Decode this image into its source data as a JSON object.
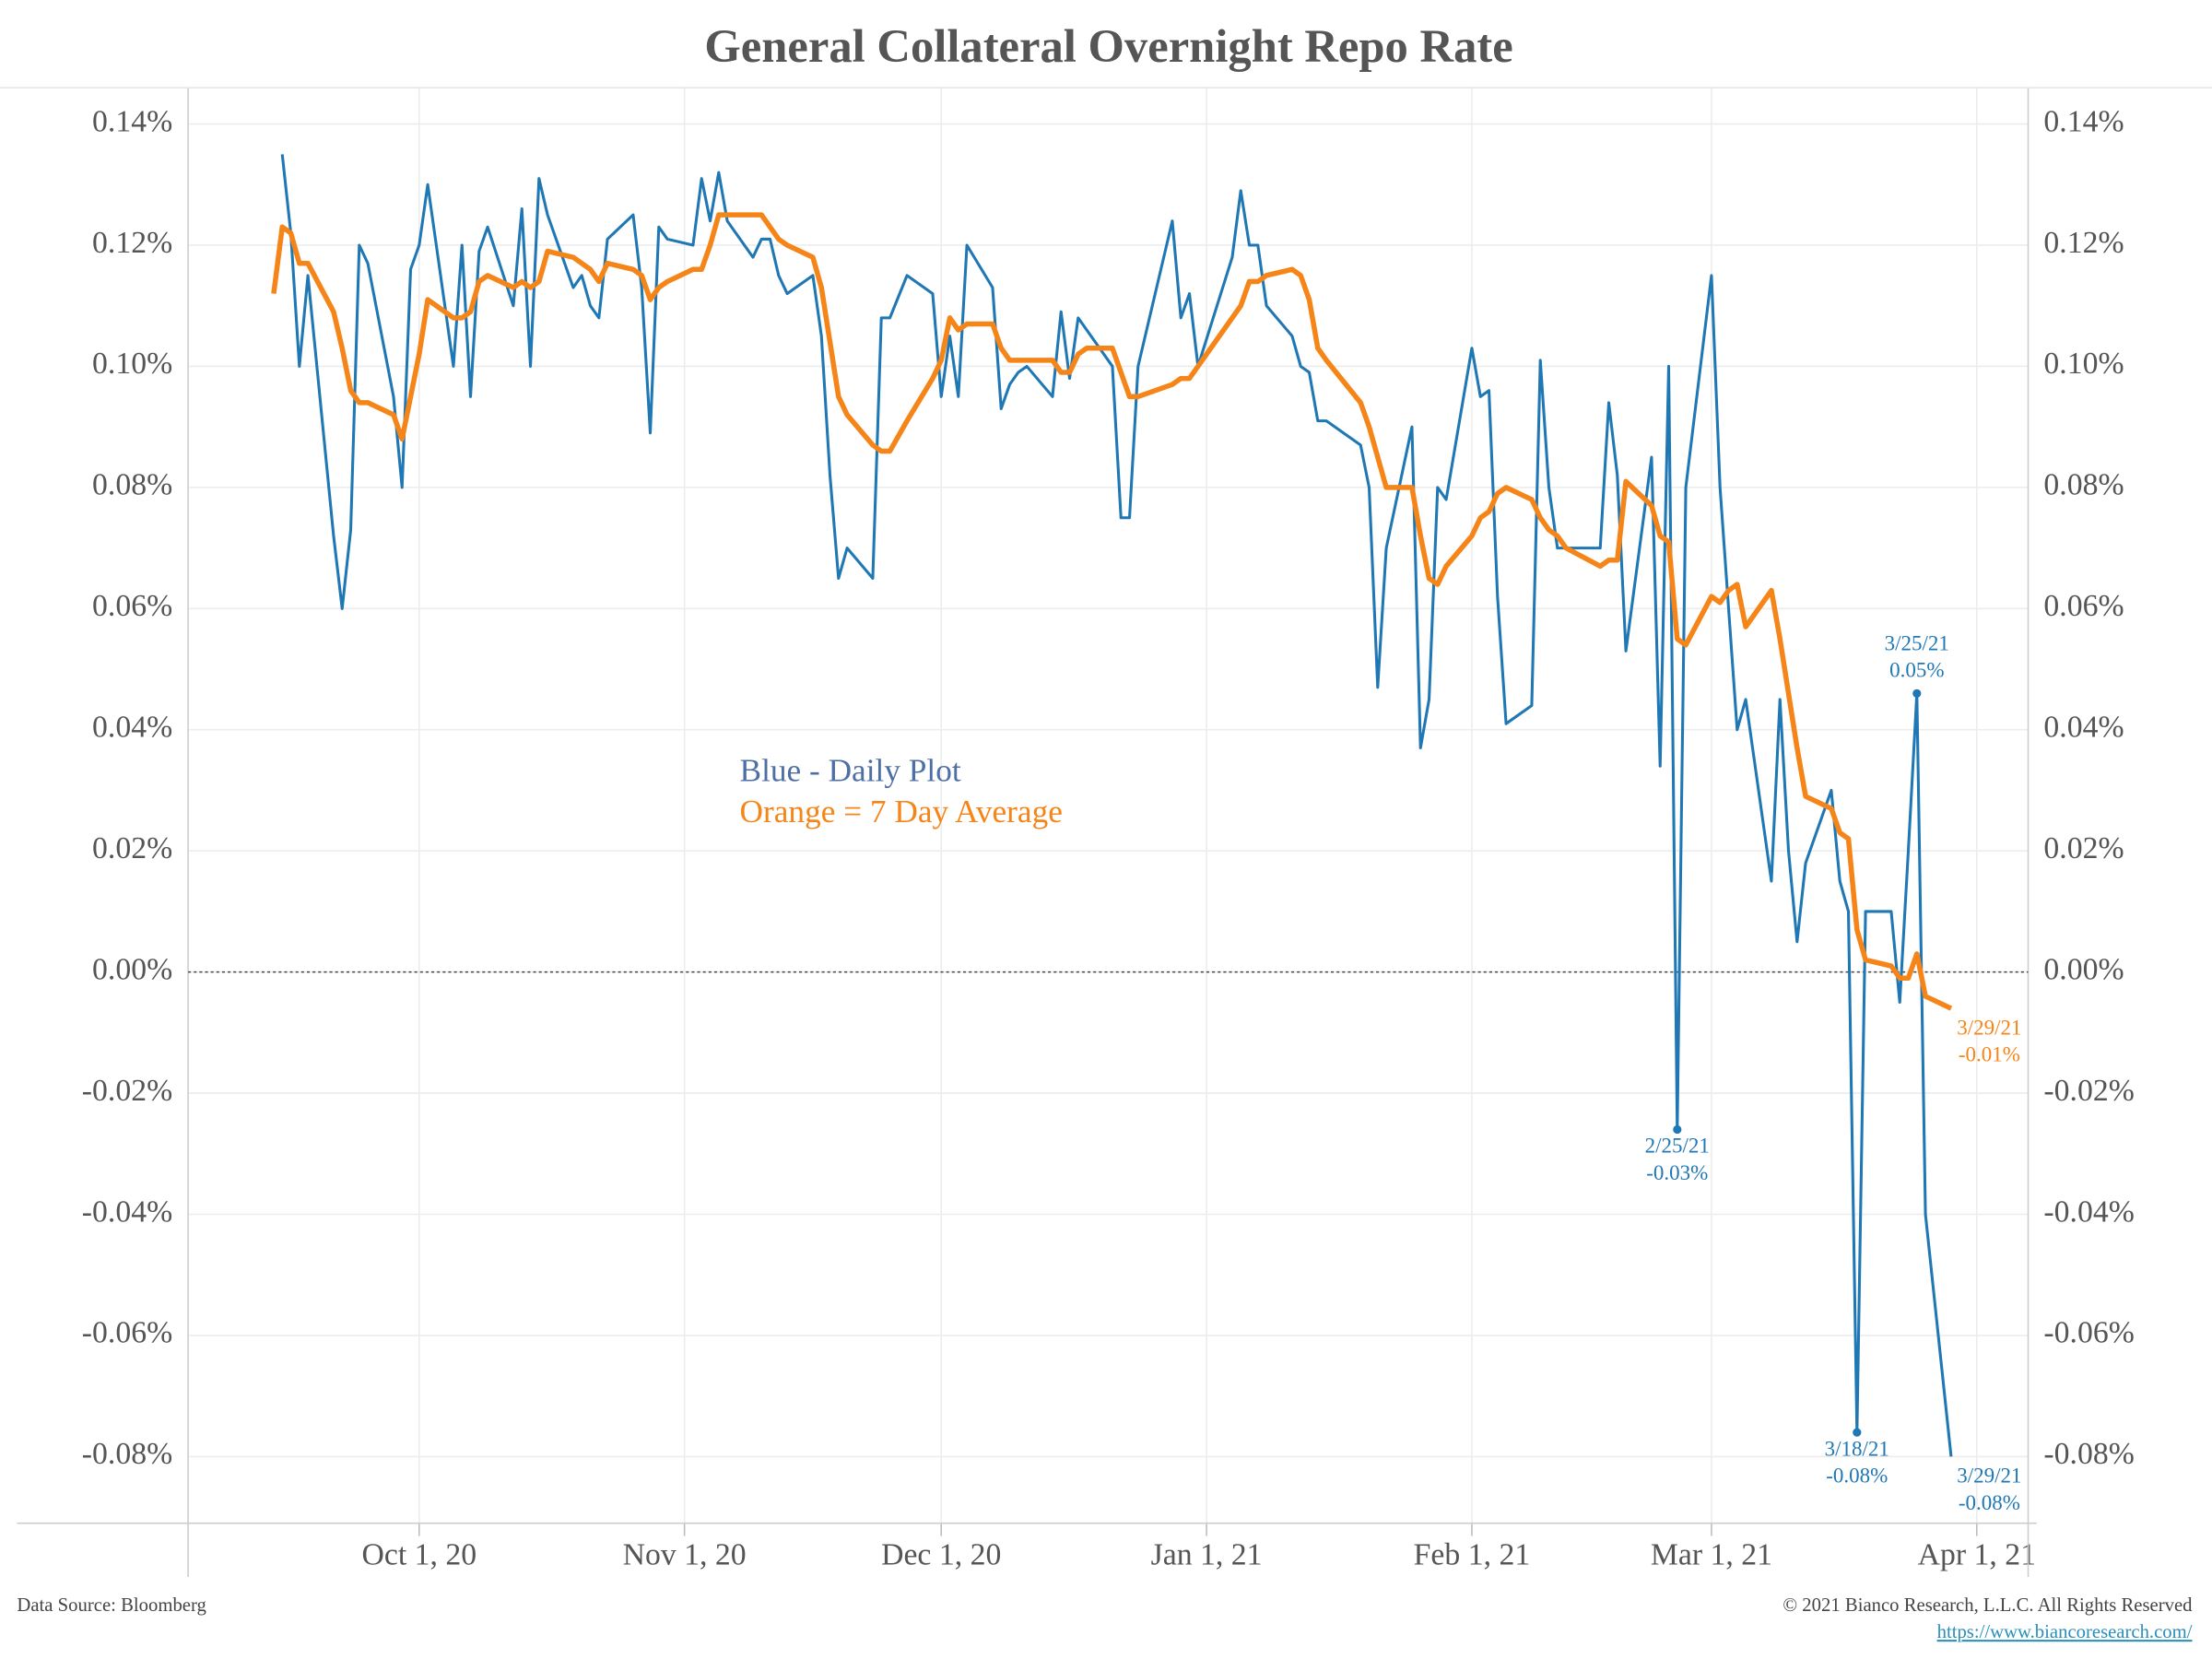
{
  "chart_data": {
    "type": "line",
    "title": "General Collateral Overnight Repo Rate",
    "x": [
      "2020-09-14",
      "2020-09-15",
      "2020-09-16",
      "2020-09-17",
      "2020-09-18",
      "2020-09-21",
      "2020-09-22",
      "2020-09-23",
      "2020-09-24",
      "2020-09-25",
      "2020-09-28",
      "2020-09-29",
      "2020-09-30",
      "2020-10-01",
      "2020-10-02",
      "2020-10-05",
      "2020-10-06",
      "2020-10-07",
      "2020-10-08",
      "2020-10-09",
      "2020-10-12",
      "2020-10-13",
      "2020-10-14",
      "2020-10-15",
      "2020-10-16",
      "2020-10-19",
      "2020-10-20",
      "2020-10-21",
      "2020-10-22",
      "2020-10-23",
      "2020-10-26",
      "2020-10-27",
      "2020-10-28",
      "2020-10-29",
      "2020-10-30",
      "2020-11-02",
      "2020-11-03",
      "2020-11-04",
      "2020-11-05",
      "2020-11-06",
      "2020-11-09",
      "2020-11-10",
      "2020-11-11",
      "2020-11-12",
      "2020-11-13",
      "2020-11-16",
      "2020-11-17",
      "2020-11-18",
      "2020-11-19",
      "2020-11-20",
      "2020-11-23",
      "2020-11-24",
      "2020-11-25",
      "2020-11-27",
      "2020-11-30",
      "2020-12-01",
      "2020-12-02",
      "2020-12-03",
      "2020-12-04",
      "2020-12-07",
      "2020-12-08",
      "2020-12-09",
      "2020-12-10",
      "2020-12-11",
      "2020-12-14",
      "2020-12-15",
      "2020-12-16",
      "2020-12-17",
      "2020-12-18",
      "2020-12-21",
      "2020-12-22",
      "2020-12-23",
      "2020-12-24",
      "2020-12-28",
      "2020-12-29",
      "2020-12-30",
      "2020-12-31",
      "2021-01-04",
      "2021-01-05",
      "2021-01-06",
      "2021-01-07",
      "2021-01-08",
      "2021-01-11",
      "2021-01-12",
      "2021-01-13",
      "2021-01-14",
      "2021-01-15",
      "2021-01-19",
      "2021-01-20",
      "2021-01-21",
      "2021-01-22",
      "2021-01-25",
      "2021-01-26",
      "2021-01-27",
      "2021-01-28",
      "2021-01-29",
      "2021-02-01",
      "2021-02-02",
      "2021-02-03",
      "2021-02-04",
      "2021-02-05",
      "2021-02-08",
      "2021-02-09",
      "2021-02-10",
      "2021-02-11",
      "2021-02-12",
      "2021-02-16",
      "2021-02-17",
      "2021-02-18",
      "2021-02-19",
      "2021-02-22",
      "2021-02-23",
      "2021-02-24",
      "2021-02-25",
      "2021-02-26",
      "2021-03-01",
      "2021-03-02",
      "2021-03-03",
      "2021-03-04",
      "2021-03-05",
      "2021-03-08",
      "2021-03-09",
      "2021-03-10",
      "2021-03-11",
      "2021-03-12",
      "2021-03-15",
      "2021-03-16",
      "2021-03-17",
      "2021-03-18",
      "2021-03-19",
      "2021-03-22",
      "2021-03-23",
      "2021-03-24",
      "2021-03-25",
      "2021-03-26",
      "2021-03-29"
    ],
    "series": [
      {
        "name": "Blue - Daily Plot",
        "color": "#1f77b4",
        "values": [
          null,
          0.135,
          0.122,
          0.1,
          0.115,
          0.072,
          0.06,
          0.073,
          0.12,
          0.117,
          0.095,
          0.08,
          0.116,
          0.12,
          0.13,
          0.1,
          0.12,
          0.095,
          0.119,
          0.123,
          0.11,
          0.126,
          0.1,
          0.131,
          0.125,
          0.113,
          0.115,
          0.11,
          0.108,
          0.121,
          0.125,
          0.113,
          0.089,
          0.123,
          0.121,
          0.12,
          0.131,
          0.124,
          0.132,
          0.124,
          0.118,
          0.121,
          0.121,
          0.115,
          0.112,
          0.115,
          0.105,
          0.082,
          0.065,
          0.07,
          0.065,
          0.108,
          0.108,
          0.115,
          0.112,
          0.095,
          0.105,
          0.095,
          0.12,
          0.113,
          0.093,
          0.097,
          0.099,
          0.1,
          0.095,
          0.109,
          0.098,
          0.108,
          0.106,
          0.1,
          0.075,
          0.075,
          0.1,
          0.124,
          0.108,
          0.112,
          0.1,
          0.118,
          0.129,
          0.12,
          0.12,
          0.11,
          0.105,
          0.1,
          0.099,
          0.091,
          0.091,
          0.087,
          0.08,
          0.047,
          0.07,
          0.09,
          0.037,
          0.045,
          0.08,
          0.078,
          0.103,
          0.095,
          0.096,
          0.062,
          0.041,
          0.044,
          0.101,
          0.08,
          0.07,
          0.07,
          0.07,
          0.094,
          0.082,
          0.053,
          0.085,
          0.034,
          0.1,
          -0.026,
          0.08,
          0.115,
          0.08,
          0.06,
          0.04,
          0.045,
          0.015,
          0.045,
          0.02,
          0.005,
          0.018,
          0.03,
          0.015,
          0.01,
          -0.076,
          0.01,
          0.01,
          -0.005,
          0.02,
          0.046,
          -0.04,
          -0.08
        ]
      },
      {
        "name": "Orange = 7 Day Average",
        "color": "#f58518",
        "values": [
          0.112,
          0.123,
          0.122,
          0.117,
          0.117,
          0.109,
          0.103,
          0.096,
          0.094,
          0.094,
          0.092,
          0.088,
          0.095,
          0.102,
          0.111,
          0.108,
          0.108,
          0.109,
          0.114,
          0.115,
          0.113,
          0.114,
          0.113,
          0.114,
          0.119,
          0.118,
          0.117,
          0.116,
          0.114,
          0.117,
          0.116,
          0.115,
          0.111,
          0.113,
          0.114,
          0.116,
          0.116,
          0.12,
          0.125,
          0.125,
          0.125,
          0.125,
          0.123,
          0.121,
          0.12,
          0.118,
          0.113,
          0.104,
          0.095,
          0.092,
          0.087,
          0.086,
          0.086,
          0.091,
          0.098,
          0.101,
          0.108,
          0.106,
          0.107,
          0.107,
          0.103,
          0.101,
          0.101,
          0.101,
          0.101,
          0.099,
          0.099,
          0.102,
          0.103,
          0.103,
          0.099,
          0.095,
          0.095,
          0.097,
          0.098,
          0.098,
          0.1,
          0.108,
          0.11,
          0.114,
          0.114,
          0.115,
          0.116,
          0.115,
          0.111,
          0.103,
          0.101,
          0.094,
          0.09,
          0.085,
          0.08,
          0.08,
          0.072,
          0.065,
          0.064,
          0.067,
          0.072,
          0.075,
          0.076,
          0.079,
          0.08,
          0.078,
          0.075,
          0.073,
          0.072,
          0.07,
          0.067,
          0.068,
          0.068,
          0.081,
          0.077,
          0.072,
          0.071,
          0.055,
          0.054,
          0.062,
          0.061,
          0.063,
          0.064,
          0.057,
          0.063,
          0.055,
          0.046,
          0.037,
          0.029,
          0.027,
          0.023,
          0.022,
          0.007,
          0.002,
          0.001,
          -0.001,
          -0.001,
          0.003,
          -0.004,
          -0.006
        ]
      }
    ],
    "xlim": [
      "2020-09-04",
      "2021-04-07"
    ],
    "xticks": [
      {
        "value": "2020-10-01",
        "label": "Oct 1, 20"
      },
      {
        "value": "2020-11-01",
        "label": "Nov 1, 20"
      },
      {
        "value": "2020-12-01",
        "label": "Dec 1, 20"
      },
      {
        "value": "2021-01-01",
        "label": "Jan 1, 21"
      },
      {
        "value": "2021-02-01",
        "label": "Feb 1, 21"
      },
      {
        "value": "2021-03-01",
        "label": "Mar 1, 21"
      },
      {
        "value": "2021-04-01",
        "label": "Apr 1, 21"
      }
    ],
    "ylim": [
      -0.091,
      0.146
    ],
    "yticks": [
      {
        "value": 0.14,
        "label": "0.14%"
      },
      {
        "value": 0.12,
        "label": "0.12%"
      },
      {
        "value": 0.1,
        "label": "0.10%"
      },
      {
        "value": 0.08,
        "label": "0.08%"
      },
      {
        "value": 0.06,
        "label": "0.06%"
      },
      {
        "value": 0.04,
        "label": "0.04%"
      },
      {
        "value": 0.02,
        "label": "0.02%"
      },
      {
        "value": 0,
        "label": "0.00%"
      },
      {
        "value": -0.02,
        "label": "-0.02%"
      },
      {
        "value": -0.04,
        "label": "-0.04%"
      },
      {
        "value": -0.06,
        "label": "-0.06%"
      },
      {
        "value": -0.08,
        "label": "-0.08%"
      }
    ],
    "y2lim": [
      -0.091,
      0.146
    ],
    "y2ticks": [
      {
        "value": 0.14,
        "label": "0.14%"
      },
      {
        "value": 0.12,
        "label": "0.12%"
      },
      {
        "value": 0.1,
        "label": "0.10%"
      },
      {
        "value": 0.08,
        "label": "0.08%"
      },
      {
        "value": 0.06,
        "label": "0.06%"
      },
      {
        "value": 0.04,
        "label": "0.04%"
      },
      {
        "value": 0.02,
        "label": "0.02%"
      },
      {
        "value": 0,
        "label": "0.00%"
      },
      {
        "value": -0.02,
        "label": "-0.02%"
      },
      {
        "value": -0.04,
        "label": "-0.04%"
      },
      {
        "value": -0.06,
        "label": "-0.06%"
      },
      {
        "value": -0.08,
        "label": "-0.08%"
      }
    ],
    "grid": true,
    "reference_line": 0,
    "annotations": [
      {
        "series": 0,
        "x": "2021-02-25",
        "lines": [
          "2/25/21",
          "-0.03%"
        ],
        "marker": true
      },
      {
        "series": 0,
        "x": "2021-03-18",
        "lines": [
          "3/18/21",
          "-0.08%"
        ],
        "marker": true
      },
      {
        "series": 0,
        "x": "2021-03-25",
        "lines": [
          "3/25/21",
          "0.05%"
        ],
        "marker": true
      },
      {
        "series": 0,
        "x": "2021-03-29",
        "lines": [
          "3/29/21",
          "-0.08%"
        ],
        "marker": false
      },
      {
        "series": 1,
        "x": "2021-03-29",
        "lines": [
          "3/29/21",
          "-0.01%"
        ],
        "marker": false
      }
    ],
    "source": "Data Source: Bloomberg",
    "copyright": "© 2021 Bianco Research, L.L.C. All Rights Reserved",
    "url": "https://www.biancoresearch.com/"
  }
}
